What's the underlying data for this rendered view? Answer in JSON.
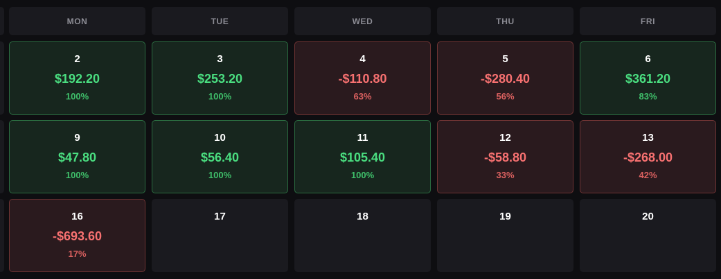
{
  "weekdays": [
    "MON",
    "TUE",
    "WED",
    "THU",
    "FRI"
  ],
  "weeks": [
    [
      {
        "day": "2",
        "pnl": "$192.20",
        "pct": "100%",
        "result": "win"
      },
      {
        "day": "3",
        "pnl": "$253.20",
        "pct": "100%",
        "result": "win"
      },
      {
        "day": "4",
        "pnl": "-$110.80",
        "pct": "63%",
        "result": "loss"
      },
      {
        "day": "5",
        "pnl": "-$280.40",
        "pct": "56%",
        "result": "loss"
      },
      {
        "day": "6",
        "pnl": "$361.20",
        "pct": "83%",
        "result": "win"
      }
    ],
    [
      {
        "day": "9",
        "pnl": "$47.80",
        "pct": "100%",
        "result": "win"
      },
      {
        "day": "10",
        "pnl": "$56.40",
        "pct": "100%",
        "result": "win"
      },
      {
        "day": "11",
        "pnl": "$105.40",
        "pct": "100%",
        "result": "win"
      },
      {
        "day": "12",
        "pnl": "-$58.80",
        "pct": "33%",
        "result": "loss"
      },
      {
        "day": "13",
        "pnl": "-$268.00",
        "pct": "42%",
        "result": "loss"
      }
    ],
    [
      {
        "day": "16",
        "pnl": "-$693.60",
        "pct": "17%",
        "result": "loss"
      },
      {
        "day": "17",
        "pnl": "",
        "pct": "",
        "result": "empty"
      },
      {
        "day": "18",
        "pnl": "",
        "pct": "",
        "result": "empty"
      },
      {
        "day": "19",
        "pnl": "",
        "pct": "",
        "result": "empty"
      },
      {
        "day": "20",
        "pnl": "",
        "pct": "",
        "result": "empty"
      }
    ]
  ],
  "colors": {
    "win_text": "#4ade80",
    "loss_text": "#f87171",
    "win_bg": "#17261e",
    "loss_bg": "#2a1a1e"
  }
}
